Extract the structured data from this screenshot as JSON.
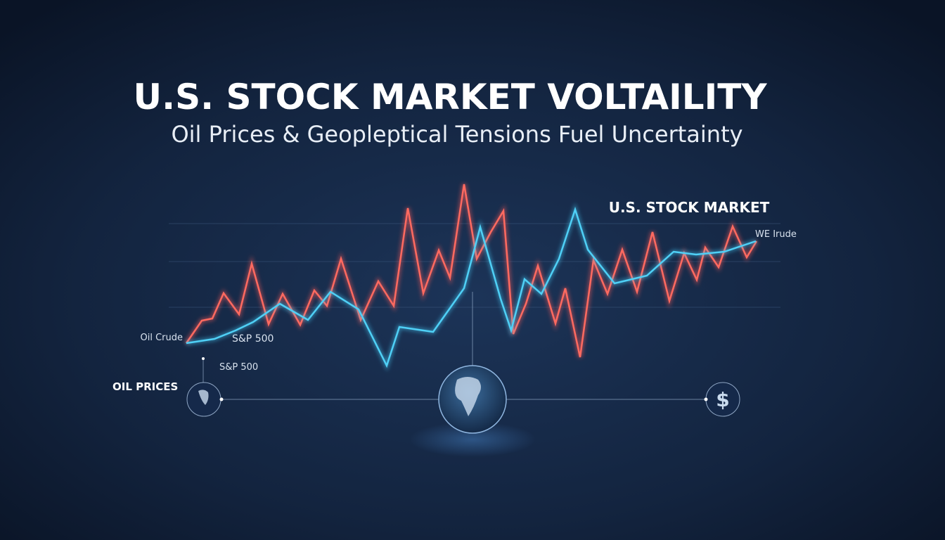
{
  "header": {
    "title": "U.S. STOCK MARKET VOLTAILITY",
    "subtitle": "Oil Prices & Geopleptical Tensions Fuel Uncertainty"
  },
  "labels": {
    "market": "U.S. STOCK MARKET",
    "wti": "WE Irude",
    "oil_crude": "Oil Crude",
    "sp500_line": "S&P 500",
    "sp500_marker": "S&P 500",
    "oil_prices": "OIL PRICES",
    "dollar": "$"
  }
}
